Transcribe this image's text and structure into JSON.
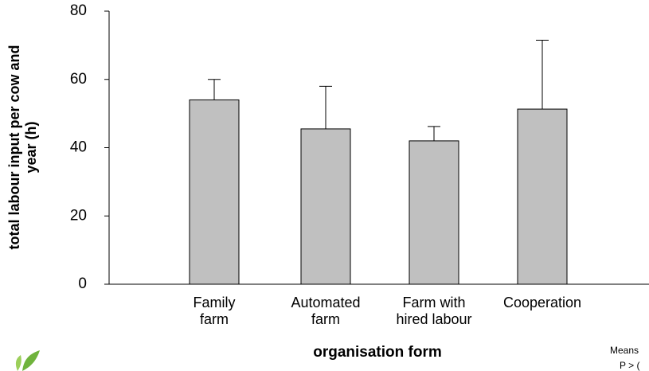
{
  "chart_data": {
    "type": "bar",
    "y_label": "total labour input per cow and\nyear (h)",
    "x_label": "organisation form",
    "categories": [
      "Family\nfarm",
      "Automated\nfarm",
      "Farm with\nhired labour",
      "Cooperation"
    ],
    "values": [
      54,
      45.5,
      42,
      51.3
    ],
    "errors": [
      6,
      12.5,
      4.2,
      20.2
    ],
    "color": "#c0c0c0",
    "ylim": [
      0,
      80
    ],
    "yticks": [
      0,
      20,
      40,
      60,
      80
    ],
    "annotations": [
      "Means",
      "P > ("
    ]
  }
}
